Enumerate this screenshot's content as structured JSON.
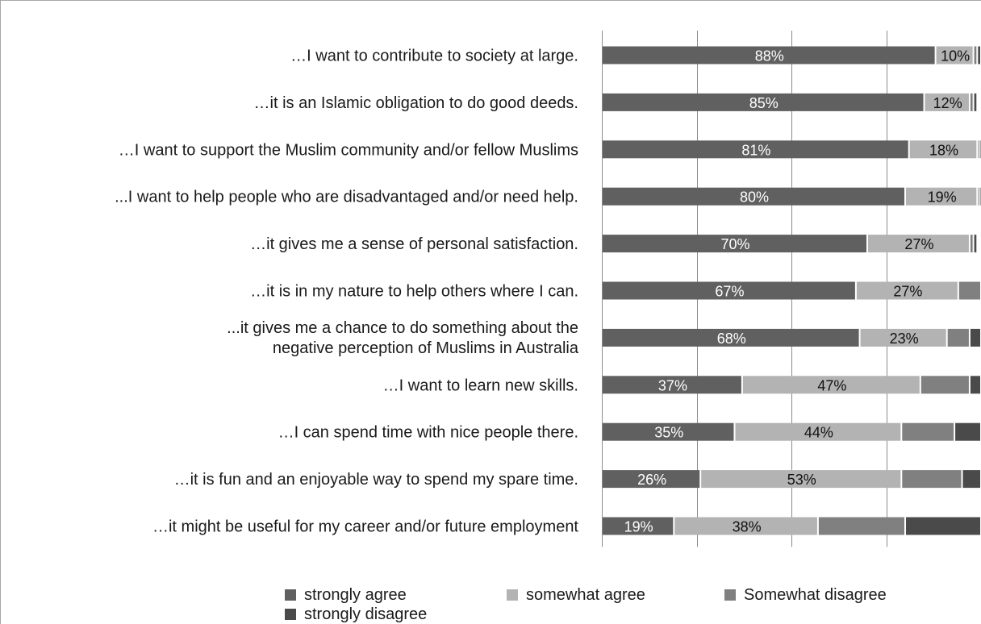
{
  "chart_data": {
    "type": "bar",
    "orientation": "horizontal",
    "stacked": true,
    "title": "",
    "xlabel": "",
    "ylabel": "",
    "xlim": [
      0,
      100
    ],
    "grid": true,
    "legend_position": "bottom",
    "categories": [
      "…I want to contribute to society at large.",
      "…it is an Islamic obligation to do good deeds.",
      "…I want to support the Muslim community and/or fellow Muslims",
      "...I want to help people who are disadvantaged and/or need help.",
      "…it gives me a sense of personal satisfaction.",
      "…it is in my nature to help others where I can.",
      "...it gives me a chance to do something about the negative perception of Muslims in Australia",
      "…I want to learn new skills.",
      "…I can spend time with nice people there.",
      "…it is fun and an enjoyable way to spend my spare time.",
      "…it might be useful for my career and/or future employment"
    ],
    "series": [
      {
        "name": "strongly agree",
        "color": "#606060",
        "values": [
          88,
          85,
          81,
          80,
          70,
          67,
          68,
          37,
          35,
          26,
          19
        ],
        "labels": [
          "88%",
          "85%",
          "81%",
          "80%",
          "70%",
          "67%",
          "68%",
          "37%",
          "35%",
          "26%",
          "19%"
        ]
      },
      {
        "name": "somewhat agree",
        "color": "#b3b3b3",
        "values": [
          10,
          12,
          18,
          19,
          27,
          27,
          23,
          47,
          44,
          53,
          38
        ],
        "labels": [
          "10%",
          "12%",
          "18%",
          "19%",
          "27%",
          "27%",
          "23%",
          "47%",
          "44%",
          "53%",
          "38%"
        ]
      },
      {
        "name": "Somewhat disagree",
        "color": "#808080",
        "values": [
          1,
          1,
          0.5,
          0.5,
          1,
          6,
          6,
          13,
          14,
          16,
          23
        ]
      },
      {
        "name": "strongly disagree",
        "color": "#4a4a4a",
        "values": [
          1,
          1,
          0.5,
          0.5,
          1,
          0,
          3,
          3,
          7,
          5,
          20
        ]
      }
    ]
  },
  "legend": {
    "items": [
      {
        "label": "strongly agree",
        "color": "#606060"
      },
      {
        "label": "somewhat agree",
        "color": "#b3b3b3"
      },
      {
        "label": "Somewhat disagree",
        "color": "#808080"
      },
      {
        "label": "strongly disagree",
        "color": "#4a4a4a"
      }
    ]
  }
}
